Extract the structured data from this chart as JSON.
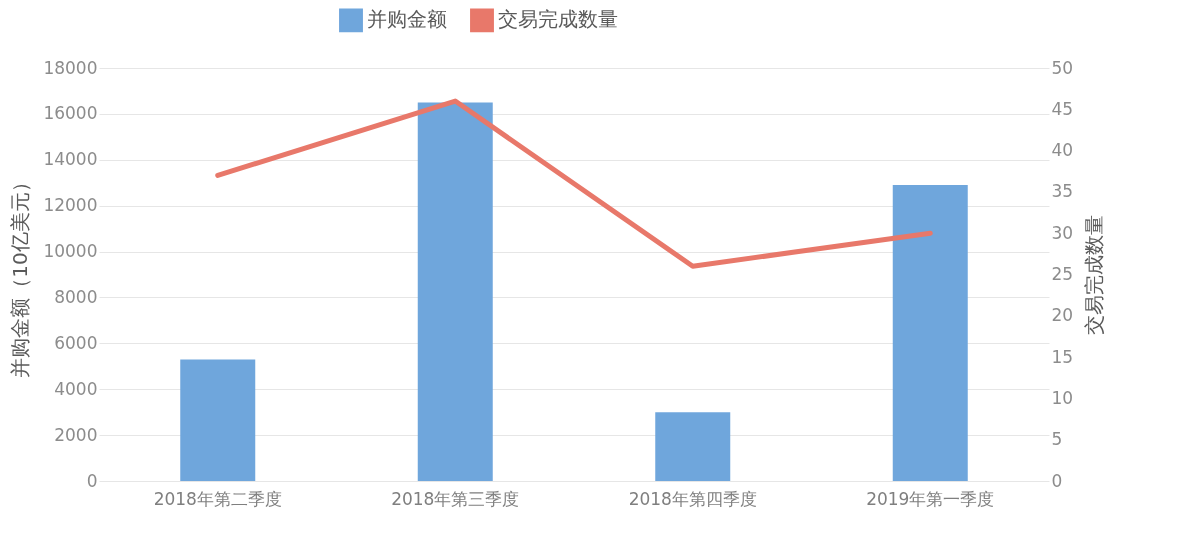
{
  "chart_data": {
    "type": "bar",
    "categories": [
      "2018年第二季度",
      "2018年第三季度",
      "2018年第四季度",
      "2019年第一季度"
    ],
    "series": [
      {
        "name": "并购金额",
        "color": "#6fa6dc",
        "values": [
          5300,
          16500,
          3000,
          12900
        ]
      },
      {
        "name": "交易完成数量",
        "type": "line",
        "axis": "y2",
        "color": "#e8786a",
        "values": [
          37,
          46,
          26,
          30
        ]
      }
    ],
    "ylabel": "并购金额（10亿美元）",
    "y2label": "交易完成数量",
    "ylim": [
      0,
      18000
    ],
    "yticks": [
      0,
      2000,
      4000,
      6000,
      8000,
      10000,
      12000,
      14000,
      16000,
      18000
    ],
    "y2lim": [
      0,
      50
    ],
    "y2ticks": [
      0,
      5,
      10,
      15,
      20,
      25,
      30,
      35,
      40,
      45,
      50
    ],
    "grid": "y",
    "legend": "top"
  }
}
